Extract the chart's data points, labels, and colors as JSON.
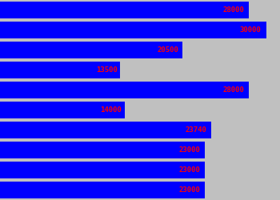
{
  "values": [
    28000,
    30000,
    20500,
    13500,
    28000,
    14000,
    23740,
    23000,
    23000,
    23000
  ],
  "bar_color": "#0000FF",
  "label_color": "#FF0000",
  "background_color": "#C0C0C0",
  "max_value": 31500,
  "bar_height": 0.82,
  "label_fontsize": 6.5,
  "figwidth": 3.5,
  "figheight": 2.5,
  "dpi": 100
}
